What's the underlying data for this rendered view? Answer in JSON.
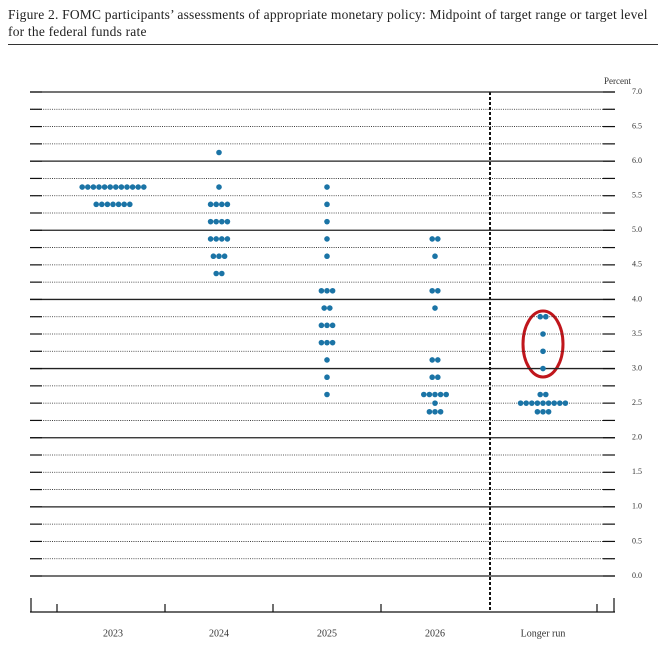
{
  "chart_data": {
    "type": "dot",
    "title": "Figure 2.  FOMC participants’ assessments of appropriate monetary policy: Midpoint of target range or target level for the federal funds rate",
    "y_label": "Percent",
    "color": "#1b74a6",
    "ylim": [
      0,
      7
    ],
    "yticks": [
      {
        "value": 0,
        "label": "0.0"
      },
      0.5,
      {
        "value": 1,
        "label": "1.0"
      },
      1.5,
      {
        "value": 2,
        "label": "2.0"
      },
      2.5,
      {
        "value": 3,
        "label": "3.0"
      },
      3.5,
      {
        "value": 4,
        "label": "4.0"
      },
      4.5,
      {
        "value": 5,
        "label": "5.0"
      },
      5.5,
      {
        "value": 6,
        "label": "6.0"
      },
      6.5,
      {
        "value": 7,
        "label": "7.0"
      }
    ],
    "minor_yticks": [
      0.25,
      0.75,
      1.25,
      1.75,
      2.25,
      2.75,
      3.25,
      3.75,
      4.25,
      4.75,
      5.25,
      5.75,
      6.25,
      6.75
    ],
    "categories": [
      "2023",
      "2024",
      "2025",
      "2026",
      "Longer run"
    ],
    "dots": [
      [
        {
          "y": 5.625,
          "count": 12
        },
        {
          "y": 5.375,
          "count": 7
        }
      ],
      [
        {
          "y": 6.125,
          "count": 1
        },
        {
          "y": 5.625,
          "count": 1
        },
        {
          "y": 5.375,
          "count": 4
        },
        {
          "y": 5.125,
          "count": 4
        },
        {
          "y": 4.875,
          "count": 4
        },
        {
          "y": 4.625,
          "count": 3
        },
        {
          "y": 4.375,
          "count": 2
        }
      ],
      [
        {
          "y": 5.625,
          "count": 1
        },
        {
          "y": 5.375,
          "count": 1
        },
        {
          "y": 5.125,
          "count": 1
        },
        {
          "y": 4.875,
          "count": 1
        },
        {
          "y": 4.625,
          "count": 1
        },
        {
          "y": 4.125,
          "count": 3
        },
        {
          "y": 3.875,
          "count": 2
        },
        {
          "y": 3.625,
          "count": 3
        },
        {
          "y": 3.375,
          "count": 3
        },
        {
          "y": 3.125,
          "count": 1
        },
        {
          "y": 2.875,
          "count": 1
        },
        {
          "y": 2.625,
          "count": 1
        }
      ],
      [
        {
          "y": 4.875,
          "count": 2
        },
        {
          "y": 4.625,
          "count": 1
        },
        {
          "y": 4.125,
          "count": 2
        },
        {
          "y": 3.875,
          "count": 1
        },
        {
          "y": 3.125,
          "count": 2
        },
        {
          "y": 2.875,
          "count": 2
        },
        {
          "y": 2.625,
          "count": 5
        },
        {
          "y": 2.5,
          "count": 1
        },
        {
          "y": 2.375,
          "count": 3
        }
      ],
      [
        {
          "y": 3.75,
          "count": 2
        },
        {
          "y": 3.5,
          "count": 1
        },
        {
          "y": 3.25,
          "count": 1
        },
        {
          "y": 3,
          "count": 1
        },
        {
          "y": 2.625,
          "count": 2
        },
        {
          "y": 2.5,
          "count": 9
        },
        {
          "y": 2.375,
          "count": 3
        }
      ]
    ]
  }
}
